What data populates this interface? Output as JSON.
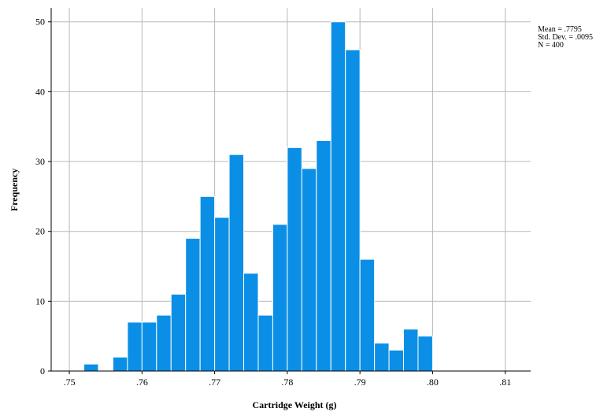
{
  "chart_data": {
    "type": "bar",
    "subtype": "histogram",
    "xlabel": "Cartridge Weight (g)",
    "ylabel": "Frequency",
    "xlim": [
      0.7475,
      0.8135
    ],
    "ylim": [
      0,
      52
    ],
    "x_ticks": [
      0.75,
      0.76,
      0.77,
      0.78,
      0.79,
      0.8,
      0.81
    ],
    "x_tick_labels": [
      ".75",
      ".76",
      ".77",
      ".78",
      ".79",
      ".80",
      ".81"
    ],
    "y_ticks": [
      0,
      10,
      20,
      30,
      40,
      50
    ],
    "y_tick_labels": [
      "0",
      "10",
      "20",
      "30",
      "40",
      "50"
    ],
    "grid": true,
    "bar_color": "#0b8fe6",
    "bin_width": 0.002,
    "bin_starts": [
      0.75,
      0.752,
      0.754,
      0.756,
      0.758,
      0.76,
      0.762,
      0.764,
      0.766,
      0.768,
      0.77,
      0.772,
      0.774,
      0.776,
      0.778,
      0.78,
      0.782,
      0.784,
      0.786,
      0.788,
      0.79,
      0.792,
      0.794,
      0.796,
      0.798,
      0.8,
      0.802,
      0.804,
      0.806,
      0.808,
      0.81
    ],
    "values": [
      0,
      1,
      0,
      2,
      7,
      7,
      8,
      11,
      19,
      25,
      22,
      31,
      14,
      8,
      21,
      32,
      29,
      33,
      50,
      46,
      16,
      4,
      3,
      6,
      5,
      0,
      0,
      0,
      0,
      0,
      0
    ],
    "stats": {
      "mean": "Mean = .7795",
      "std_dev": "Std. Dev. = .0095",
      "n": "N = 400"
    }
  }
}
